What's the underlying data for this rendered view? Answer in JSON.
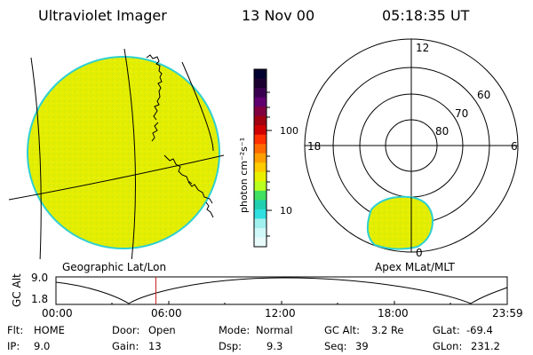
{
  "header": {
    "instrument": "Ultraviolet Imager",
    "date": "13 Nov 00",
    "time": "05:18:35 UT"
  },
  "colorbar": {
    "unit_label": "photon cm⁻²s⁻¹",
    "ticks": [
      "100",
      "10"
    ],
    "colors": [
      "#000030",
      "#1a0030",
      "#3a0050",
      "#600070",
      "#800040",
      "#a00010",
      "#d00000",
      "#ff3000",
      "#ff6a00",
      "#ffa000",
      "#ffcc00",
      "#e8f000",
      "#b8ff20",
      "#40e060",
      "#20d0b0",
      "#30e0e0",
      "#a0f0f0",
      "#d0f8f8",
      "#e8fafa"
    ],
    "scale": "log"
  },
  "left_map": {
    "label": "Geographic Lat/Lon",
    "disk_color": "#e8f000",
    "rim_color": "#30d0d0"
  },
  "right_map": {
    "label": "Apex MLat/MLT",
    "clock_labels": {
      "top": "12",
      "left": "18",
      "right": "6",
      "bottom": "0"
    },
    "lat_labels": [
      "60",
      "70",
      "80"
    ],
    "blob_color": "#e8f000"
  },
  "timeline": {
    "axis_label": "GC Alt",
    "y_top": "9.0",
    "y_bottom": "1.8",
    "x_ticks": [
      "00:00",
      "06:00",
      "12:00",
      "18:00",
      "23:59"
    ],
    "current_time_hours": 5.31,
    "marker_color": "#cc2020"
  },
  "info": {
    "flt_label": "Flt:",
    "flt_value": "HOME",
    "ip_label": "IP:",
    "ip_value": "9.0",
    "door_label": "Door:",
    "door_value": "Open",
    "gain_label": "Gain:",
    "gain_value": "13",
    "mode_label": "Mode:",
    "mode_value": "Normal",
    "dsp_label": "Dsp:",
    "dsp_value": "9.3",
    "gcalt_label": "GC Alt:",
    "gcalt_value": "3.2 Re",
    "seq_label": "Seq:",
    "seq_value": "39",
    "glat_label": "GLat:",
    "glat_value": "-69.4",
    "glon_label": "GLon:",
    "glon_value": "231.2"
  }
}
